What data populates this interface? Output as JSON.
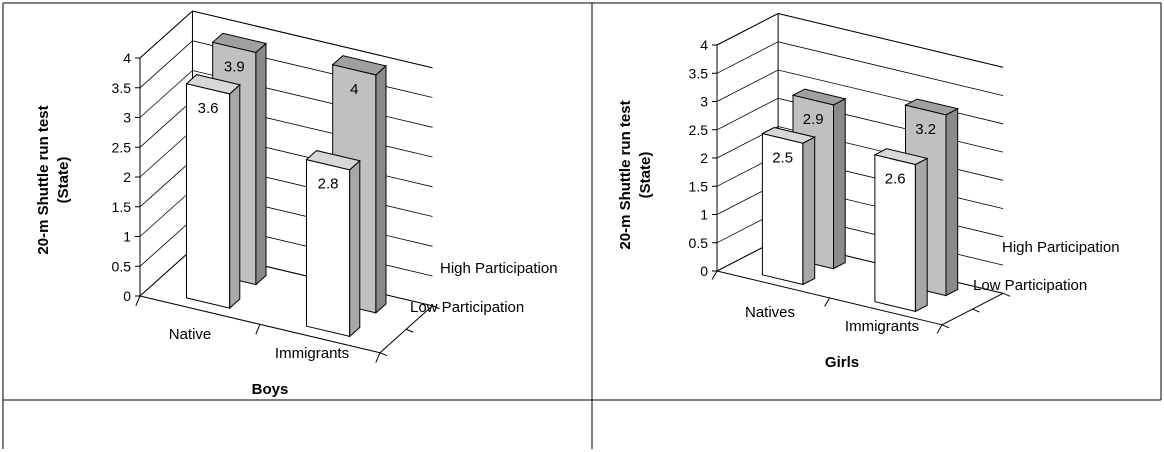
{
  "chart_data": [
    {
      "type": "bar",
      "chart_style": "3d-column",
      "categories": [
        "Native",
        "Immigrants"
      ],
      "series": [
        {
          "name": "Low Participation",
          "values": [
            3.6,
            2.8
          ],
          "color": "#ffffff"
        },
        {
          "name": "High Participation",
          "values": [
            3.9,
            4.0
          ],
          "color": "#c0c0c0"
        }
      ],
      "data_labels": [
        [
          "3.6",
          "2.8"
        ],
        [
          "3.9",
          "4"
        ]
      ],
      "yticks": [
        "0",
        "0.5",
        "1",
        "1.5",
        "2",
        "2.5",
        "3",
        "3.5",
        "4"
      ],
      "ylim": [
        0,
        4
      ],
      "ylabel_line1": "20-m Shuttle run test",
      "ylabel_line2": "(State)",
      "xlabel": "Boys",
      "grid": true
    },
    {
      "type": "bar",
      "chart_style": "3d-column",
      "categories": [
        "Natives",
        "Immigrants"
      ],
      "series": [
        {
          "name": "Low Participation",
          "values": [
            2.5,
            2.6
          ],
          "color": "#ffffff"
        },
        {
          "name": "High Participation",
          "values": [
            2.9,
            3.2
          ],
          "color": "#c0c0c0"
        }
      ],
      "data_labels": [
        [
          "2.5",
          "2.6"
        ],
        [
          "2.9",
          "3.2"
        ]
      ],
      "yticks": [
        "0",
        "0.5",
        "1",
        "1.5",
        "2",
        "2.5",
        "3",
        "3.5",
        "4"
      ],
      "ylim": [
        0,
        4
      ],
      "ylabel_line1": "20-m Shuttle run test",
      "ylabel_line2": "(State)",
      "xlabel": "Girls",
      "grid": true
    }
  ]
}
